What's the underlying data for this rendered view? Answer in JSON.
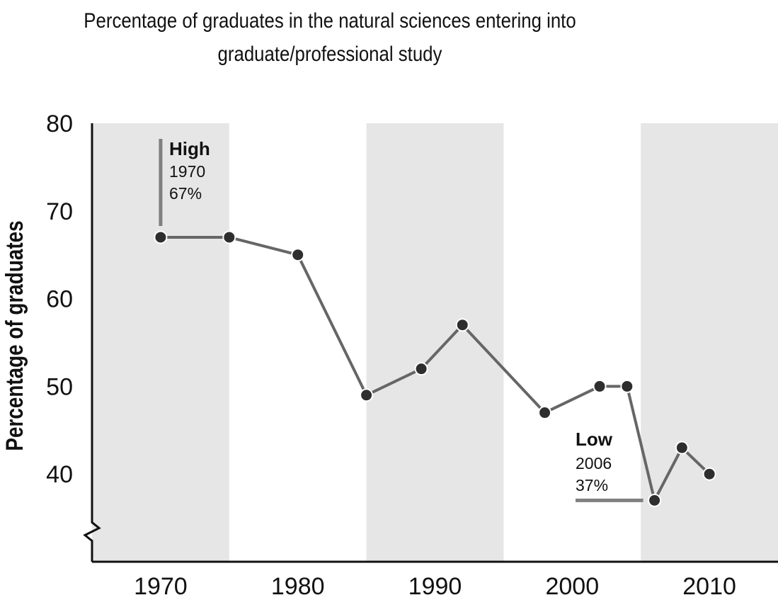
{
  "chart_data": {
    "type": "line",
    "title": "Percentage of graduates in the natural sciences entering into graduate/professional study",
    "title_lines": [
      "Percentage of graduates in the natural sciences entering into",
      "graduate/professional study"
    ],
    "xlabel": "",
    "ylabel": "Percentage of graduates",
    "xlim": [
      1965,
      2015
    ],
    "ylim": [
      30,
      80
    ],
    "x_ticks": [
      1970,
      1980,
      1990,
      2000,
      2010
    ],
    "y_ticks": [
      40,
      50,
      60,
      70,
      80
    ],
    "shaded_bands": [
      [
        1965,
        1975
      ],
      [
        1985,
        1995
      ],
      [
        2005,
        2015
      ]
    ],
    "axis_break": "y",
    "grid": false,
    "series": [
      {
        "x": [
          1970,
          1975,
          1980,
          1985,
          1989,
          1992,
          1998,
          2002,
          2004,
          2006,
          2008,
          2010
        ],
        "y": [
          67,
          67,
          65,
          49,
          52,
          57,
          47,
          50,
          50,
          37,
          43,
          40
        ]
      }
    ],
    "annotations": [
      {
        "head": "High",
        "year": "1970",
        "value": "67%"
      },
      {
        "head": "Low",
        "year": "2006",
        "value": "37%"
      }
    ]
  },
  "colors": {
    "band": "#e6e6e6",
    "line": "#666666",
    "marker": "#2e2e2e",
    "marker_stroke": "#ffffff",
    "axis": "#111111",
    "leader": "#808080"
  }
}
